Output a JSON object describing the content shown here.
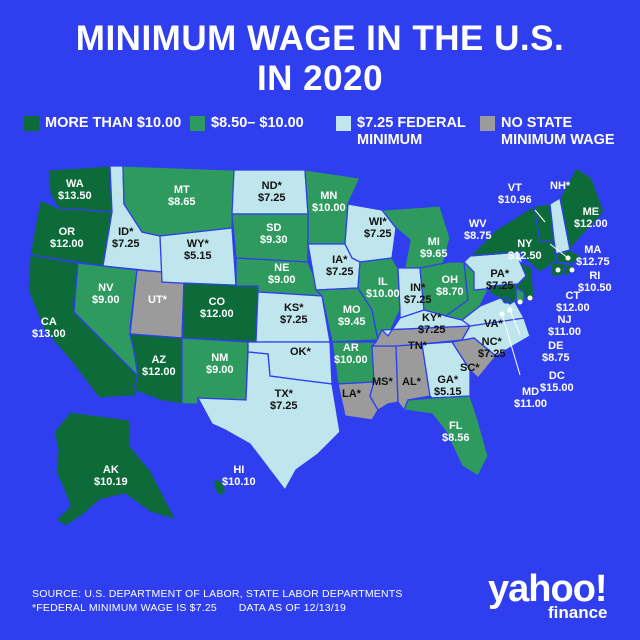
{
  "title_line1": "MINIMUM WAGE IN THE U.S.",
  "title_line2": "IN 2020",
  "colors": {
    "background": "#2f3ff0",
    "more_than_10": "#0d6b3a",
    "between_850_10": "#2e9a5e",
    "federal_minimum": "#bfe6ec",
    "no_state_wage": "#9b9b9b"
  },
  "legend": [
    {
      "label": "MORE THAN $10.00",
      "color_key": "more_than_10"
    },
    {
      "label": "$8.50– $10.00",
      "color_key": "between_850_10"
    },
    {
      "label": "$7.25 FEDERAL MINIMUM",
      "color_key": "federal_minimum"
    },
    {
      "label": "NO STATE MINIMUM WAGE",
      "color_key": "no_state_wage"
    }
  ],
  "states": {
    "WA": {
      "name": "WA",
      "wage": "$13.50",
      "category": "more_than_10"
    },
    "OR": {
      "name": "OR",
      "wage": "$12.00",
      "category": "more_than_10"
    },
    "CA": {
      "name": "CA",
      "wage": "$13.00",
      "category": "more_than_10"
    },
    "ID": {
      "name": "ID*",
      "wage": "$7.25",
      "category": "federal_minimum"
    },
    "NV": {
      "name": "NV",
      "wage": "$9.00",
      "category": "between_850_10"
    },
    "UT": {
      "name": "UT*",
      "wage": "",
      "category": "no_state_wage"
    },
    "AZ": {
      "name": "AZ",
      "wage": "$12.00",
      "category": "more_than_10"
    },
    "MT": {
      "name": "MT",
      "wage": "$8.65",
      "category": "between_850_10"
    },
    "WY": {
      "name": "WY*",
      "wage": "$5.15",
      "category": "federal_minimum"
    },
    "CO": {
      "name": "CO",
      "wage": "$12.00",
      "category": "more_than_10"
    },
    "NM": {
      "name": "NM",
      "wage": "$9.00",
      "category": "between_850_10"
    },
    "ND": {
      "name": "ND*",
      "wage": "$7.25",
      "category": "federal_minimum"
    },
    "SD": {
      "name": "SD",
      "wage": "$9.30",
      "category": "between_850_10"
    },
    "NE": {
      "name": "NE",
      "wage": "$9.00",
      "category": "between_850_10"
    },
    "KS": {
      "name": "KS*",
      "wage": "$7.25",
      "category": "federal_minimum"
    },
    "OK": {
      "name": "OK*",
      "wage": "",
      "category": "federal_minimum"
    },
    "TX": {
      "name": "TX*",
      "wage": "$7.25",
      "category": "federal_minimum"
    },
    "MN": {
      "name": "MN",
      "wage": "$10.00",
      "category": "between_850_10"
    },
    "IA": {
      "name": "IA*",
      "wage": "$7.25",
      "category": "federal_minimum"
    },
    "MO": {
      "name": "MO",
      "wage": "$9.45",
      "category": "between_850_10"
    },
    "AR": {
      "name": "AR",
      "wage": "$10.00",
      "category": "between_850_10"
    },
    "LA": {
      "name": "LA*",
      "wage": "",
      "category": "no_state_wage"
    },
    "WI": {
      "name": "WI*",
      "wage": "$7.25",
      "category": "federal_minimum"
    },
    "IL": {
      "name": "IL",
      "wage": "$10.00",
      "category": "between_850_10"
    },
    "MS": {
      "name": "MS*",
      "wage": "",
      "category": "no_state_wage"
    },
    "AL": {
      "name": "AL*",
      "wage": "",
      "category": "no_state_wage"
    },
    "TN": {
      "name": "TN*",
      "wage": "",
      "category": "no_state_wage"
    },
    "MI": {
      "name": "MI",
      "wage": "$9.65",
      "category": "between_850_10"
    },
    "IN": {
      "name": "IN*",
      "wage": "$7.25",
      "category": "federal_minimum"
    },
    "OH": {
      "name": "OH",
      "wage": "$8.70",
      "category": "between_850_10"
    },
    "KY": {
      "name": "KY*",
      "wage": "$7.25",
      "category": "federal_minimum"
    },
    "GA": {
      "name": "GA*",
      "wage": "$5.15",
      "category": "federal_minimum"
    },
    "FL": {
      "name": "FL",
      "wage": "$8.56",
      "category": "between_850_10"
    },
    "SC": {
      "name": "SC*",
      "wage": "",
      "category": "no_state_wage"
    },
    "NC": {
      "name": "NC*",
      "wage": "$7.25",
      "category": "federal_minimum"
    },
    "VA": {
      "name": "VA*",
      "wage": "",
      "category": "federal_minimum"
    },
    "WV": {
      "name": "WV",
      "wage": "$8.75",
      "category": "between_850_10"
    },
    "PA": {
      "name": "PA*",
      "wage": "$7.25",
      "category": "federal_minimum"
    },
    "NY": {
      "name": "NY",
      "wage": "$12.50",
      "category": "more_than_10"
    },
    "VT": {
      "name": "VT",
      "wage": "$10.96",
      "category": "more_than_10"
    },
    "NH": {
      "name": "NH*",
      "wage": "",
      "category": "federal_minimum"
    },
    "ME": {
      "name": "ME",
      "wage": "$12.00",
      "category": "more_than_10"
    },
    "MA": {
      "name": "MA",
      "wage": "$12.75",
      "category": "more_than_10"
    },
    "RI": {
      "name": "RI",
      "wage": "$10.50",
      "category": "more_than_10"
    },
    "CT": {
      "name": "CT",
      "wage": "$12.00",
      "category": "more_than_10"
    },
    "NJ": {
      "name": "NJ",
      "wage": "$11.00",
      "category": "more_than_10"
    },
    "DE": {
      "name": "DE",
      "wage": "$8.75",
      "category": "between_850_10"
    },
    "MD": {
      "name": "MD",
      "wage": "$11.00",
      "category": "more_than_10"
    },
    "DC": {
      "name": "DC",
      "wage": "$15.00",
      "category": "more_than_10"
    },
    "AK": {
      "name": "AK",
      "wage": "$10.19",
      "category": "more_than_10"
    },
    "HI": {
      "name": "HI",
      "wage": "$10.10",
      "category": "more_than_10"
    }
  },
  "footer_source": "SOURCE:  U.S. DEPARTMENT OF LABOR, STATE LABOR DEPARTMENTS",
  "footer_note": "*FEDERAL MINIMUM WAGE IS $7.25       DATA AS OF 12/13/19",
  "brand_main": "yahoo!",
  "brand_sub": "finance"
}
